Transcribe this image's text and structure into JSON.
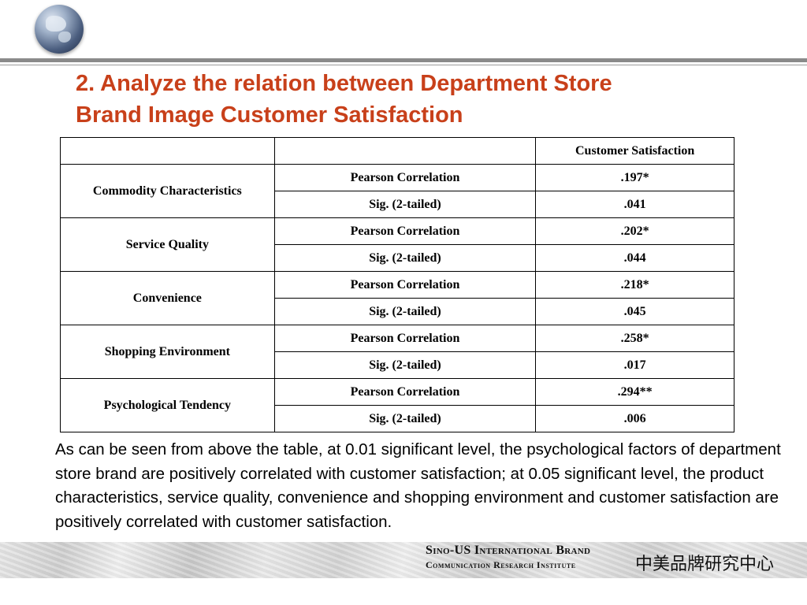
{
  "slide": {
    "title_line1": "2. Analyze the relation between Department Store",
    "title_line2": "Brand Image Customer Satisfaction",
    "title_color": "#c8401a"
  },
  "table": {
    "header": [
      "",
      "",
      "Customer Satisfaction"
    ],
    "groups": [
      {
        "factor": "Commodity Characteristics",
        "rows": [
          {
            "stat": "Pearson Correlation",
            "value": ".197*"
          },
          {
            "stat": "Sig. (2-tailed)",
            "value": ".041"
          }
        ]
      },
      {
        "factor": "Service Quality",
        "rows": [
          {
            "stat": "Pearson Correlation",
            "value": ".202*"
          },
          {
            "stat": "Sig. (2-tailed)",
            "value": ".044"
          }
        ]
      },
      {
        "factor": "Convenience",
        "rows": [
          {
            "stat": "Pearson Correlation",
            "value": ".218*"
          },
          {
            "stat": "Sig. (2-tailed)",
            "value": ".045"
          }
        ]
      },
      {
        "factor": "Shopping Environment",
        "rows": [
          {
            "stat": "Pearson Correlation",
            "value": ".258*"
          },
          {
            "stat": "Sig. (2-tailed)",
            "value": ".017"
          }
        ]
      },
      {
        "factor": "Psychological Tendency",
        "rows": [
          {
            "stat": "Pearson Correlation",
            "value": ".294**"
          },
          {
            "stat": "Sig. (2-tailed)",
            "value": ".006"
          }
        ]
      }
    ]
  },
  "body_text": " As can be seen from above the table, at 0.01 significant level, the psychological factors of department store brand are positively correlated with customer satisfaction; at 0.05 significant level, the product characteristics, service quality, convenience and shopping environment and customer satisfaction are positively correlated with customer satisfaction.",
  "footer": {
    "institute_line1": "Sino-US International  Brand",
    "institute_line2": "Communication Research Institute",
    "chinese_name": "中美品牌研究中心"
  },
  "icons": {
    "logo": "globe-icon"
  }
}
